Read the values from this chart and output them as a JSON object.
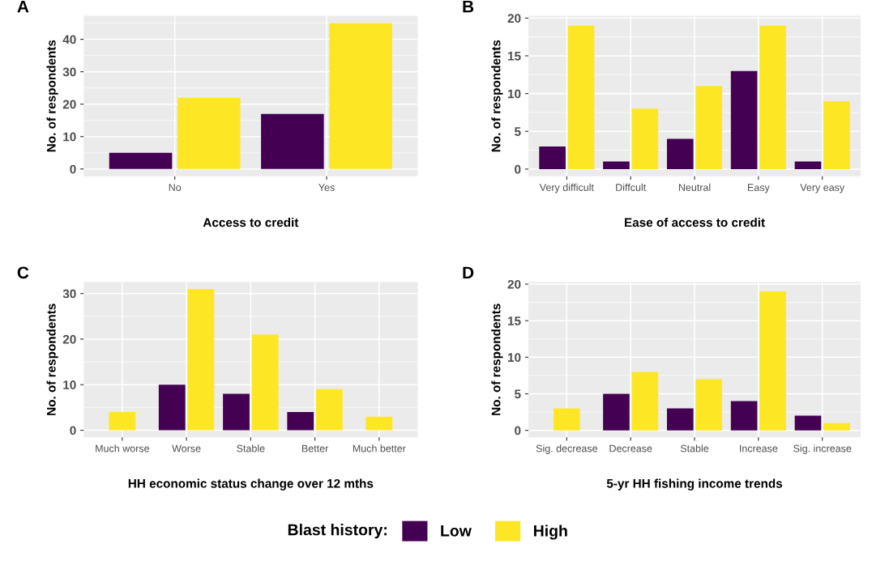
{
  "chart_data": [
    {
      "type": "bar",
      "annotations": [
        "A"
      ],
      "xlabel": "Access to credit",
      "ylabel": "No. of respondents",
      "categories": [
        "No",
        "Yes"
      ],
      "series": [
        {
          "name": "Low",
          "color": "#440154",
          "values": [
            5,
            17
          ]
        },
        {
          "name": "High",
          "color": "#fde725",
          "values": [
            22,
            45
          ]
        }
      ],
      "ylim": [
        -2.25,
        47.25
      ],
      "yticks": [
        0,
        10,
        20,
        30,
        40
      ],
      "grid": true,
      "legend": "bottom",
      "legend_title": "Blast history:"
    },
    {
      "type": "bar",
      "annotations": [
        "B"
      ],
      "xlabel": "Ease of access to credit",
      "ylabel": "No. of respondents",
      "categories": [
        "Very difficult",
        "Diffcult",
        "Neutral",
        "Easy",
        "Very easy"
      ],
      "series": [
        {
          "color": "#440154",
          "values": [
            3,
            1,
            4,
            13,
            1
          ]
        },
        {
          "color": "#fde725",
          "values": [
            19,
            8,
            11,
            19,
            9
          ]
        }
      ],
      "ylim": [
        -0.95,
        20.3
      ],
      "yticks": [
        0,
        5,
        10,
        15,
        20
      ],
      "grid": true
    },
    {
      "type": "bar",
      "annotations": [
        "C"
      ],
      "xlabel": "HH economic status change over 12 mths",
      "ylabel": "No. of respondents",
      "categories": [
        "Much worse",
        "Worse",
        "Stable",
        "Better",
        "Much better"
      ],
      "series": [
        {
          "color": "#440154",
          "values": [
            null,
            10,
            8,
            4,
            null
          ]
        },
        {
          "color": "#fde725",
          "values": [
            4,
            31,
            21,
            9,
            3
          ]
        }
      ],
      "ylim": [
        -1.55,
        32.55
      ],
      "yticks": [
        0,
        10,
        20,
        30
      ],
      "grid": true
    },
    {
      "type": "bar",
      "annotations": [
        "D"
      ],
      "xlabel": "5-yr HH fishing income trends",
      "ylabel": "No. of respondents",
      "categories": [
        "Sig. decrease",
        "Decrease",
        "Stable",
        "Increase",
        "Sig. increase"
      ],
      "series": [
        {
          "color": "#440154",
          "values": [
            null,
            5,
            3,
            4,
            2
          ]
        },
        {
          "color": "#fde725",
          "values": [
            3,
            8,
            7,
            19,
            1
          ]
        }
      ],
      "ylim": [
        -0.95,
        20.3
      ],
      "yticks": [
        0,
        5,
        10,
        15,
        20
      ],
      "grid": true
    }
  ]
}
